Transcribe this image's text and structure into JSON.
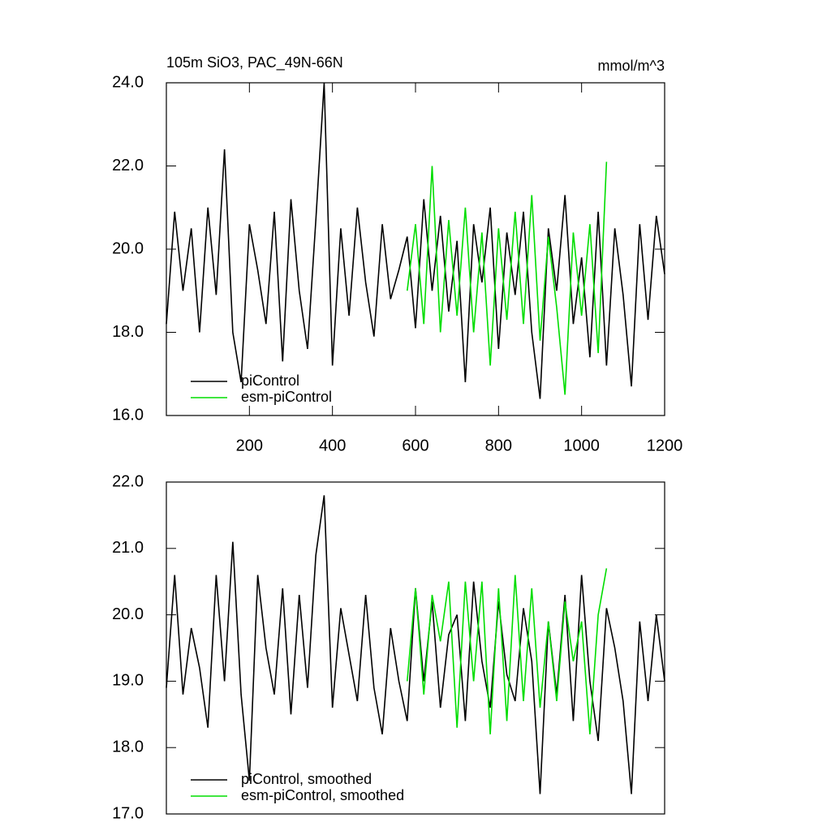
{
  "chart_data": [
    {
      "type": "line",
      "title": "105m SiO3, PAC_49N-66N",
      "title_right": "mmol/m^3",
      "x": [
        0,
        20,
        40,
        60,
        80,
        100,
        120,
        140,
        160,
        180,
        200,
        220,
        240,
        260,
        280,
        300,
        320,
        340,
        360,
        380,
        400,
        420,
        440,
        460,
        480,
        500,
        520,
        540,
        560,
        580,
        600,
        620,
        640,
        660,
        680,
        700,
        720,
        740,
        760,
        780,
        800,
        820,
        840,
        860,
        880,
        900,
        920,
        940,
        960,
        980,
        1000,
        1020,
        1040,
        1060,
        1080,
        1100,
        1120,
        1140,
        1160,
        1180,
        1200
      ],
      "series": [
        {
          "name": "piControl",
          "color": "#000000",
          "values": [
            18.2,
            20.9,
            19.0,
            20.5,
            18.0,
            21.0,
            18.9,
            22.4,
            18.0,
            16.8,
            20.6,
            19.5,
            18.2,
            20.9,
            17.3,
            21.2,
            19.0,
            17.6,
            20.7,
            24.0,
            17.2,
            20.5,
            18.4,
            21.0,
            19.2,
            17.9,
            20.6,
            18.8,
            19.5,
            20.3,
            18.1,
            21.2,
            19.0,
            20.8,
            18.5,
            20.2,
            16.8,
            20.6,
            19.2,
            21.0,
            17.6,
            20.4,
            18.9,
            20.9,
            18.0,
            16.4,
            20.5,
            19.0,
            21.3,
            18.2,
            19.8,
            17.4,
            20.9,
            17.2,
            20.5,
            18.9,
            16.7,
            20.6,
            18.3,
            20.8,
            19.4
          ]
        },
        {
          "name": "esm-piControl",
          "color": "#00dd00",
          "values": [
            null,
            null,
            null,
            null,
            null,
            null,
            null,
            null,
            null,
            null,
            null,
            null,
            null,
            null,
            null,
            null,
            null,
            null,
            null,
            null,
            null,
            null,
            null,
            null,
            null,
            null,
            null,
            null,
            null,
            19.0,
            20.6,
            18.2,
            22.0,
            18.0,
            20.7,
            18.4,
            21.0,
            18.0,
            20.4,
            17.2,
            20.5,
            18.3,
            20.9,
            18.2,
            21.3,
            17.8,
            20.3,
            18.6,
            16.5,
            20.4,
            18.4,
            20.6,
            17.5,
            22.1,
            null,
            null,
            null,
            null,
            null,
            null,
            null
          ]
        }
      ],
      "xlim": [
        0,
        1200
      ],
      "xticks": [
        200,
        400,
        600,
        800,
        1000,
        1200
      ],
      "ylim": [
        16,
        24
      ],
      "yticks": [
        {
          "value": 16,
          "label": "16.0"
        },
        {
          "value": 18,
          "label": "18.0"
        },
        {
          "value": 20,
          "label": "20.0"
        },
        {
          "value": 22,
          "label": "22.0"
        },
        {
          "value": 24,
          "label": "24.0"
        }
      ],
      "legend": "lower left"
    },
    {
      "type": "line",
      "x": [
        0,
        20,
        40,
        60,
        80,
        100,
        120,
        140,
        160,
        180,
        200,
        220,
        240,
        260,
        280,
        300,
        320,
        340,
        360,
        380,
        400,
        420,
        440,
        460,
        480,
        500,
        520,
        540,
        560,
        580,
        600,
        620,
        640,
        660,
        680,
        700,
        720,
        740,
        760,
        780,
        800,
        820,
        840,
        860,
        880,
        900,
        920,
        940,
        960,
        980,
        1000,
        1020,
        1040,
        1060,
        1080,
        1100,
        1120,
        1140,
        1160,
        1180,
        1200
      ],
      "series": [
        {
          "name": "piControl, smoothed",
          "color": "#000000",
          "values": [
            18.9,
            20.6,
            18.8,
            19.8,
            19.2,
            18.3,
            20.6,
            19.0,
            21.1,
            18.8,
            17.5,
            20.6,
            19.5,
            18.8,
            20.4,
            18.5,
            20.3,
            18.9,
            20.9,
            21.8,
            18.6,
            20.1,
            19.4,
            18.7,
            20.3,
            18.9,
            18.2,
            19.8,
            19.0,
            18.4,
            20.4,
            19.0,
            20.2,
            18.6,
            19.7,
            20.0,
            18.4,
            20.5,
            19.3,
            18.6,
            20.2,
            19.1,
            18.7,
            20.1,
            19.3,
            17.3,
            19.9,
            18.8,
            20.3,
            18.4,
            20.6,
            19.0,
            18.1,
            20.1,
            19.5,
            18.7,
            17.3,
            19.9,
            18.7,
            20.0,
            19.0
          ]
        },
        {
          "name": "esm-piControl, smoothed",
          "color": "#00dd00",
          "values": [
            null,
            null,
            null,
            null,
            null,
            null,
            null,
            null,
            null,
            null,
            null,
            null,
            null,
            null,
            null,
            null,
            null,
            null,
            null,
            null,
            null,
            null,
            null,
            null,
            null,
            null,
            null,
            null,
            null,
            19.0,
            20.4,
            18.8,
            20.3,
            19.6,
            20.5,
            18.3,
            20.5,
            19.0,
            20.5,
            18.2,
            20.4,
            18.4,
            20.6,
            18.7,
            20.4,
            18.6,
            19.9,
            18.7,
            20.2,
            19.3,
            19.9,
            18.2,
            20.0,
            20.7,
            null,
            null,
            null,
            null,
            null,
            null,
            null
          ]
        }
      ],
      "xlim": [
        0,
        1200
      ],
      "ylim": [
        17,
        22
      ],
      "yticks": [
        {
          "value": 17,
          "label": "17.0"
        },
        {
          "value": 18,
          "label": "18.0"
        },
        {
          "value": 19,
          "label": "19.0"
        },
        {
          "value": 20,
          "label": "20.0"
        },
        {
          "value": 21,
          "label": "21.0"
        },
        {
          "value": 22,
          "label": "22.0"
        }
      ],
      "legend": "lower left"
    }
  ]
}
